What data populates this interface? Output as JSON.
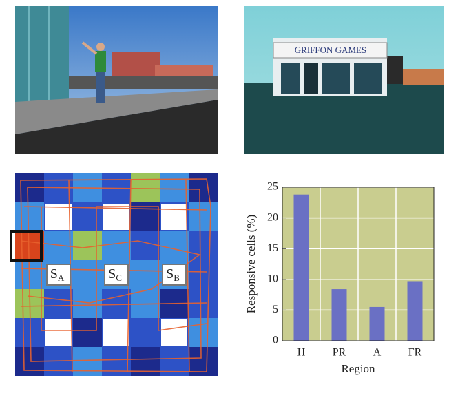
{
  "scenes": {
    "store_sign": "GRIFFON GAMES"
  },
  "map": {
    "labels": [
      {
        "main": "S",
        "sub": "A"
      },
      {
        "main": "S",
        "sub": "C"
      },
      {
        "main": "S",
        "sub": "B"
      }
    ]
  },
  "chart_data": {
    "type": "bar",
    "categories": [
      "H",
      "PR",
      "A",
      "FR"
    ],
    "values": [
      23.8,
      8.4,
      5.5,
      9.7
    ],
    "color": "#6a70c4",
    "ylim": [
      0,
      25
    ],
    "yticks": [
      0,
      5,
      10,
      15,
      20,
      25
    ],
    "grid": true,
    "x_label": "Region",
    "y_label": "Responsive cells (%)"
  }
}
